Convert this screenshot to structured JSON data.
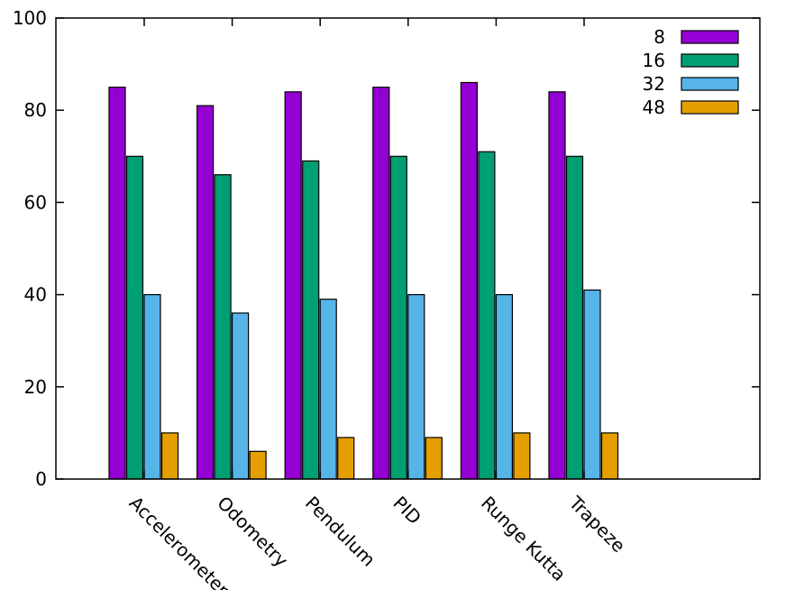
{
  "chart_data": {
    "type": "bar",
    "categories": [
      "Accelerometer",
      "Odometry",
      "Pendulum",
      "PID",
      "Runge Kutta",
      "Trapeze"
    ],
    "series": [
      {
        "name": "8",
        "color": "#9400d3",
        "values": [
          85,
          81,
          84,
          85,
          86,
          84
        ]
      },
      {
        "name": "16",
        "color": "#009e73",
        "values": [
          70,
          66,
          69,
          70,
          71,
          70
        ]
      },
      {
        "name": "32",
        "color": "#56b4e9",
        "values": [
          40,
          36,
          39,
          40,
          40,
          41
        ]
      },
      {
        "name": "48",
        "color": "#e69f00",
        "values": [
          10,
          6,
          9,
          9,
          10,
          10
        ]
      }
    ],
    "ylim": [
      0,
      100
    ],
    "yticks": [
      0,
      20,
      40,
      60,
      80,
      100
    ],
    "grid": false,
    "legend_position": "top-right",
    "x_label_rotation": "diagonal"
  }
}
